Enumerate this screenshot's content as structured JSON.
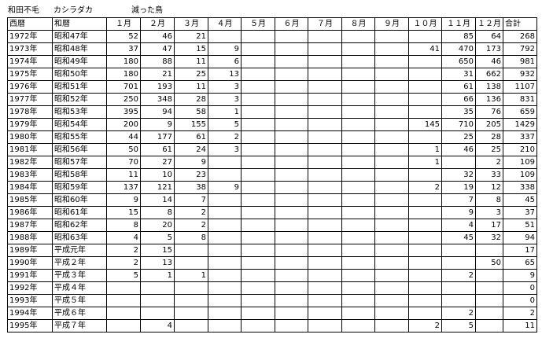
{
  "title": {
    "place": "和田不毛",
    "species": "カシラダカ",
    "caption": "減った鳥"
  },
  "headers": [
    "西暦",
    "和暦",
    "１月",
    "２月",
    "３月",
    "４月",
    "５月",
    "６月",
    "７月",
    "８月",
    "９月",
    "１０月",
    "１１月",
    "１２月",
    "合計"
  ],
  "rows": [
    [
      "1972年",
      "昭和47年",
      "52",
      "46",
      "21",
      "",
      "",
      "",
      "",
      "",
      "",
      "",
      "85",
      "64",
      "268"
    ],
    [
      "1973年",
      "昭和48年",
      "37",
      "47",
      "15",
      "9",
      "",
      "",
      "",
      "",
      "",
      "41",
      "470",
      "173",
      "792"
    ],
    [
      "1974年",
      "昭和49年",
      "180",
      "88",
      "11",
      "6",
      "",
      "",
      "",
      "",
      "",
      "",
      "650",
      "46",
      "981"
    ],
    [
      "1975年",
      "昭和50年",
      "180",
      "21",
      "25",
      "13",
      "",
      "",
      "",
      "",
      "",
      "",
      "31",
      "662",
      "932"
    ],
    [
      "1976年",
      "昭和51年",
      "701",
      "193",
      "11",
      "3",
      "",
      "",
      "",
      "",
      "",
      "",
      "61",
      "138",
      "1107"
    ],
    [
      "1977年",
      "昭和52年",
      "250",
      "348",
      "28",
      "3",
      "",
      "",
      "",
      "",
      "",
      "",
      "66",
      "136",
      "831"
    ],
    [
      "1978年",
      "昭和53年",
      "395",
      "94",
      "58",
      "1",
      "",
      "",
      "",
      "",
      "",
      "",
      "35",
      "76",
      "659"
    ],
    [
      "1979年",
      "昭和54年",
      "200",
      "9",
      "155",
      "5",
      "",
      "",
      "",
      "",
      "",
      "145",
      "710",
      "205",
      "1429"
    ],
    [
      "1980年",
      "昭和55年",
      "44",
      "177",
      "61",
      "2",
      "",
      "",
      "",
      "",
      "",
      "",
      "25",
      "28",
      "337"
    ],
    [
      "1981年",
      "昭和56年",
      "50",
      "61",
      "24",
      "3",
      "",
      "",
      "",
      "",
      "",
      "1",
      "46",
      "25",
      "210"
    ],
    [
      "1982年",
      "昭和57年",
      "70",
      "27",
      "9",
      "",
      "",
      "",
      "",
      "",
      "",
      "1",
      "",
      "2",
      "109"
    ],
    [
      "1983年",
      "昭和58年",
      "11",
      "10",
      "23",
      "",
      "",
      "",
      "",
      "",
      "",
      "",
      "32",
      "33",
      "109"
    ],
    [
      "1984年",
      "昭和59年",
      "137",
      "121",
      "38",
      "9",
      "",
      "",
      "",
      "",
      "",
      "2",
      "19",
      "12",
      "338"
    ],
    [
      "1985年",
      "昭和60年",
      "9",
      "14",
      "7",
      "",
      "",
      "",
      "",
      "",
      "",
      "",
      "7",
      "8",
      "45"
    ],
    [
      "1986年",
      "昭和61年",
      "15",
      "8",
      "2",
      "",
      "",
      "",
      "",
      "",
      "",
      "",
      "9",
      "3",
      "37"
    ],
    [
      "1987年",
      "昭和62年",
      "8",
      "20",
      "2",
      "",
      "",
      "",
      "",
      "",
      "",
      "",
      "4",
      "17",
      "51"
    ],
    [
      "1988年",
      "昭和63年",
      "4",
      "5",
      "8",
      "",
      "",
      "",
      "",
      "",
      "",
      "",
      "45",
      "32",
      "94"
    ],
    [
      "1989年",
      "平成元年",
      "2",
      "15",
      "",
      "",
      "",
      "",
      "",
      "",
      "",
      "",
      "",
      "",
      "17"
    ],
    [
      "1990年",
      "平成２年",
      "2",
      "13",
      "",
      "",
      "",
      "",
      "",
      "",
      "",
      "",
      "",
      "50",
      "65"
    ],
    [
      "1991年",
      "平成３年",
      "5",
      "1",
      "1",
      "",
      "",
      "",
      "",
      "",
      "",
      "",
      "2",
      "",
      "9"
    ],
    [
      "1992年",
      "平成４年",
      "",
      "",
      "",
      "",
      "",
      "",
      "",
      "",
      "",
      "",
      "",
      "",
      "0"
    ],
    [
      "1993年",
      "平成５年",
      "",
      "",
      "",
      "",
      "",
      "",
      "",
      "",
      "",
      "",
      "",
      "",
      "0"
    ],
    [
      "1994年",
      "平成６年",
      "",
      "",
      "",
      "",
      "",
      "",
      "",
      "",
      "",
      "",
      "2",
      "",
      "2"
    ],
    [
      "1995年",
      "平成７年",
      "",
      "4",
      "",
      "",
      "",
      "",
      "",
      "",
      "",
      "2",
      "5",
      "",
      "11"
    ]
  ]
}
